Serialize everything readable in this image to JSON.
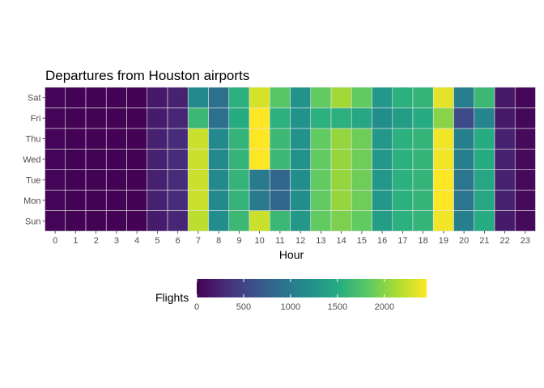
{
  "chart_data": {
    "type": "heatmap",
    "title": "Departures from Houston airports",
    "xlabel": "Hour",
    "ylabel": "",
    "x": [
      "0",
      "1",
      "2",
      "3",
      "4",
      "5",
      "6",
      "7",
      "8",
      "9",
      "10",
      "11",
      "12",
      "13",
      "14",
      "15",
      "16",
      "17",
      "18",
      "19",
      "20",
      "21",
      "22",
      "23"
    ],
    "y": [
      "Sun",
      "Mon",
      "Tue",
      "Wed",
      "Thu",
      "Fri",
      "Sat"
    ],
    "values": [
      [
        20,
        10,
        5,
        5,
        10,
        180,
        260,
        2200,
        1200,
        1650,
        2250,
        1650,
        1300,
        1850,
        1950,
        1850,
        1350,
        1550,
        1600,
        2400,
        1050,
        1500,
        180,
        60
      ],
      [
        20,
        10,
        5,
        5,
        10,
        220,
        300,
        2250,
        1150,
        1600,
        1000,
        800,
        1200,
        1850,
        2050,
        1900,
        1300,
        1550,
        1600,
        2450,
        950,
        1450,
        220,
        60
      ],
      [
        20,
        10,
        5,
        5,
        10,
        220,
        300,
        2250,
        1150,
        1600,
        1000,
        800,
        1200,
        1850,
        2050,
        1900,
        1300,
        1550,
        1600,
        2450,
        950,
        1450,
        220,
        60
      ],
      [
        20,
        10,
        5,
        5,
        10,
        220,
        300,
        2250,
        1150,
        1600,
        2450,
        1650,
        1250,
        1850,
        2050,
        1900,
        1300,
        1550,
        1600,
        2400,
        1050,
        1500,
        220,
        60
      ],
      [
        20,
        10,
        5,
        5,
        10,
        220,
        300,
        2250,
        1150,
        1600,
        2500,
        1650,
        1250,
        1850,
        2050,
        1900,
        1300,
        1550,
        1600,
        2400,
        1050,
        1500,
        220,
        60
      ],
      [
        20,
        10,
        5,
        5,
        10,
        180,
        260,
        1650,
        900,
        1500,
        2450,
        1550,
        1250,
        1550,
        1550,
        1450,
        1200,
        1350,
        1500,
        2000,
        550,
        1100,
        160,
        50
      ],
      [
        20,
        10,
        5,
        5,
        10,
        160,
        230,
        1150,
        900,
        1550,
        2300,
        1800,
        1250,
        1850,
        2100,
        1850,
        1300,
        1550,
        1600,
        2350,
        1050,
        1650,
        160,
        40
      ]
    ],
    "legend": {
      "title": "Flights",
      "ticks": [
        0,
        500,
        1000,
        1500,
        2000
      ],
      "range": [
        0,
        2450
      ],
      "position": "bottom"
    },
    "colorscale": "viridis",
    "grid": false
  }
}
